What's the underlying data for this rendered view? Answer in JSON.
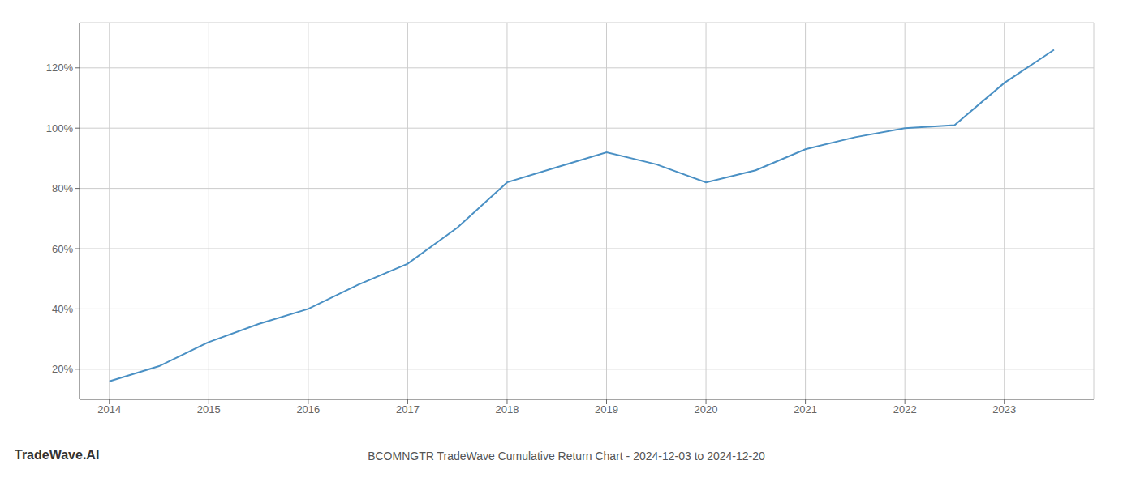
{
  "chart_data": {
    "type": "line",
    "title": "BCOMNGTR TradeWave Cumulative Return Chart - 2024-12-03 to 2024-12-20",
    "annotations": [
      "TradeWave.AI"
    ],
    "x": [
      2014,
      2014.5,
      2015,
      2015.5,
      2016,
      2016.5,
      2017,
      2017.5,
      2018,
      2018.5,
      2019,
      2019.5,
      2020,
      2020.5,
      2021,
      2021.5,
      2022,
      2022.5,
      2023,
      2023.5
    ],
    "values": [
      16,
      21,
      29,
      35,
      40,
      48,
      55,
      67,
      82,
      87,
      92,
      88,
      82,
      86,
      93,
      97,
      100,
      101,
      115,
      126
    ],
    "color": "#4a90c4",
    "xlim": [
      2013.7,
      2023.9
    ],
    "ylim": [
      10,
      135
    ],
    "xticks": [
      2014,
      2015,
      2016,
      2017,
      2018,
      2019,
      2020,
      2021,
      2022,
      2023
    ],
    "yticks": [
      {
        "value": 20,
        "label": "20%"
      },
      {
        "value": 40,
        "label": "40%"
      },
      {
        "value": 60,
        "label": "60%"
      },
      {
        "value": 80,
        "label": "80%"
      },
      {
        "value": 100,
        "label": "100%"
      },
      {
        "value": 120,
        "label": "120%"
      }
    ],
    "grid": true
  }
}
